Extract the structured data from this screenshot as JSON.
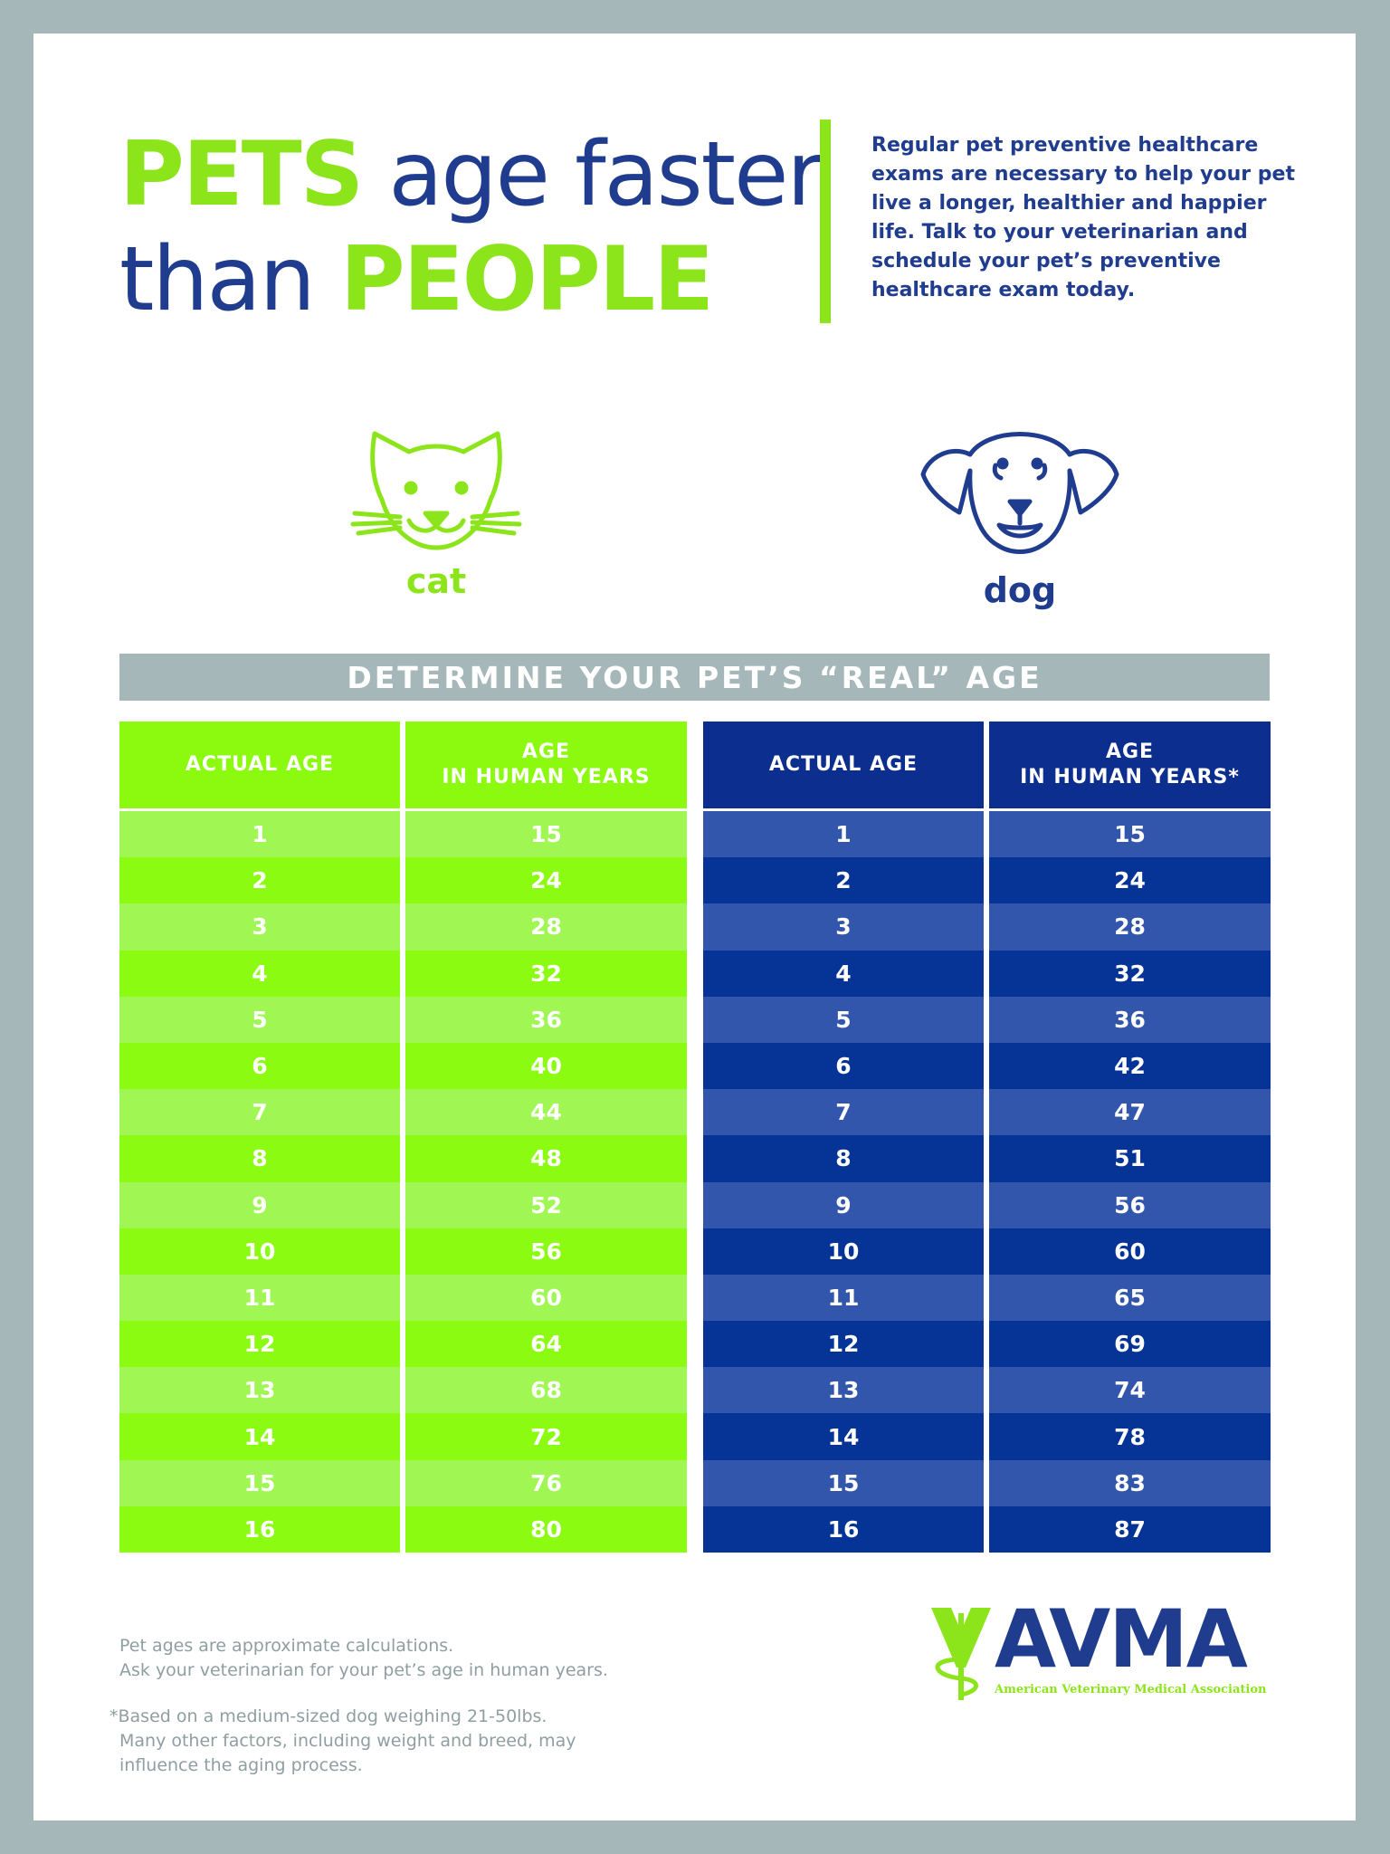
{
  "headline": {
    "word1": "PETS",
    "word2": "age faster",
    "word3": "than",
    "word4": "PEOPLE"
  },
  "intro": "Regular pet preventive healthcare exams are necessary to help your pet live a longer, healthier and happier life. Talk to your veterinarian and schedule your pet’s preventive healthcare exam today.",
  "pets": {
    "cat_label": "cat",
    "dog_label": "dog"
  },
  "banner": "DETERMINE YOUR PET’S “REAL” AGE",
  "cat_table": {
    "col1": "ACTUAL AGE",
    "col2_line1": "AGE",
    "col2_line2": "IN HUMAN YEARS",
    "rows": [
      [
        "1",
        "15"
      ],
      [
        "2",
        "24"
      ],
      [
        "3",
        "28"
      ],
      [
        "4",
        "32"
      ],
      [
        "5",
        "36"
      ],
      [
        "6",
        "40"
      ],
      [
        "7",
        "44"
      ],
      [
        "8",
        "48"
      ],
      [
        "9",
        "52"
      ],
      [
        "10",
        "56"
      ],
      [
        "11",
        "60"
      ],
      [
        "12",
        "64"
      ],
      [
        "13",
        "68"
      ],
      [
        "14",
        "72"
      ],
      [
        "15",
        "76"
      ],
      [
        "16",
        "80"
      ]
    ]
  },
  "dog_table": {
    "col1": "ACTUAL AGE",
    "col2_line1": "AGE",
    "col2_line2": "IN HUMAN YEARS*",
    "rows": [
      [
        "1",
        "15"
      ],
      [
        "2",
        "24"
      ],
      [
        "3",
        "28"
      ],
      [
        "4",
        "32"
      ],
      [
        "5",
        "36"
      ],
      [
        "6",
        "42"
      ],
      [
        "7",
        "47"
      ],
      [
        "8",
        "51"
      ],
      [
        "9",
        "56"
      ],
      [
        "10",
        "60"
      ],
      [
        "11",
        "65"
      ],
      [
        "12",
        "69"
      ],
      [
        "13",
        "74"
      ],
      [
        "14",
        "78"
      ],
      [
        "15",
        "83"
      ],
      [
        "16",
        "87"
      ]
    ]
  },
  "footer": {
    "note1_line1": "Pet ages are approximate calculations.",
    "note1_line2": "Ask your veterinarian for your pet’s age in human years.",
    "note2_line1": "*Based on a medium-sized dog weighing 21-50lbs.",
    "note2_line2": "Many other factors, including weight and breed, may",
    "note2_line3": "influence the aging process."
  },
  "logo": {
    "word": "AVMA",
    "subtitle": "American Veterinary Medical Association"
  },
  "colors": {
    "green": "#8ce41b",
    "navy": "#1f3c8e",
    "gray": "#a5b7b9"
  }
}
